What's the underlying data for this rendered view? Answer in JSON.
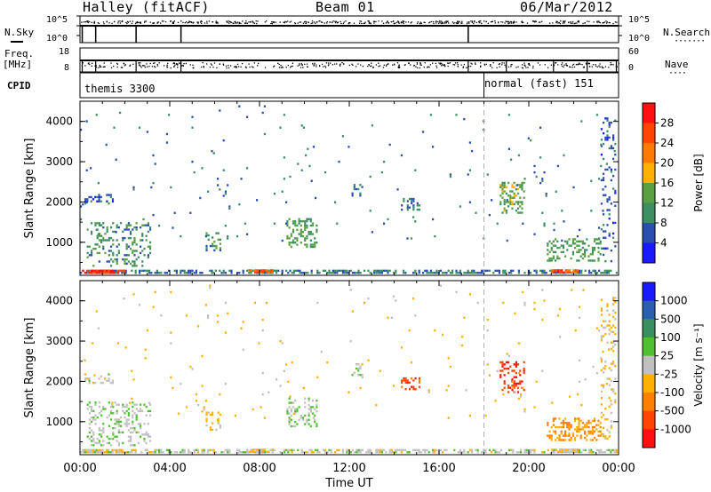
{
  "header": {
    "station": "Halley (fitACF)",
    "beam": "Beam 01",
    "date": "06/Mar/2012"
  },
  "top_panels": {
    "nsky_label": "N.Sky",
    "nsearch_label": "N.Search",
    "nsky_ticks": [
      "10^5",
      "10^0"
    ],
    "nsearch_ticks": [
      "10^5",
      "10^0"
    ],
    "freq_label_1": "Freq.",
    "freq_label_2": "[MHz]",
    "freq_ticks": [
      "18",
      "8"
    ],
    "nave_label": "Nave",
    "nave_ticks": [
      "60",
      "0"
    ],
    "cpid_label": "CPID",
    "cpid_segments": [
      "themis 3300",
      "normal (fast) 151"
    ]
  },
  "colors": {
    "power_scale": [
      "#1a1aff",
      "#2a4fb0",
      "#3b8f60",
      "#5aa040",
      "#ffb000",
      "#ff7a00",
      "#ff4500",
      "#ff1010"
    ],
    "velocity_scale": [
      "#ff1010",
      "#ff4500",
      "#ff8000",
      "#ffb000",
      "#c0c0c0",
      "#50c030",
      "#3a8f60",
      "#2a5fb0",
      "#1a1aff"
    ],
    "dashed_line": "#b0b0b0"
  },
  "chart_data": [
    {
      "type": "heatmap",
      "name": "power",
      "ylabel": "Slant Range [km]",
      "xlabel": "",
      "xlim": [
        "00:00",
        "24:00"
      ],
      "ylim": [
        180,
        4500
      ],
      "y_ticks": [
        "1000",
        "2000",
        "3000",
        "4000"
      ],
      "colorbar": {
        "label": "Power [dB]",
        "ticks": [
          "28",
          "24",
          "20",
          "16",
          "12",
          "8",
          "4"
        ],
        "range": [
          0,
          32
        ]
      },
      "mode_change_time": "18:00",
      "scatter_regions": [
        {
          "t": [
            0.0,
            24.0
          ],
          "r": [
            200,
            320
          ],
          "v": 8,
          "density": 0.55
        },
        {
          "t": [
            0.1,
            2.0
          ],
          "r": [
            200,
            320
          ],
          "v": 28,
          "density": 0.8
        },
        {
          "t": [
            0.3,
            3.2
          ],
          "r": [
            400,
            1500
          ],
          "v": 10,
          "density": 0.25
        },
        {
          "t": [
            0.2,
            1.5
          ],
          "r": [
            1950,
            2200
          ],
          "v": 6,
          "density": 0.35
        },
        {
          "t": [
            5.6,
            6.3
          ],
          "r": [
            750,
            1250
          ],
          "v": 10,
          "density": 0.3
        },
        {
          "t": [
            7.5,
            8.6
          ],
          "r": [
            200,
            330
          ],
          "v": 24,
          "density": 0.8
        },
        {
          "t": [
            9.2,
            10.6
          ],
          "r": [
            850,
            1600
          ],
          "v": 12,
          "density": 0.3
        },
        {
          "t": [
            12.1,
            12.6
          ],
          "r": [
            2150,
            2450
          ],
          "v": 8,
          "density": 0.35
        },
        {
          "t": [
            14.3,
            15.2
          ],
          "r": [
            1800,
            2100
          ],
          "v": 8,
          "density": 0.4
        },
        {
          "t": [
            18.7,
            19.8
          ],
          "r": [
            1700,
            2500
          ],
          "v": 14,
          "density": 0.35
        },
        {
          "t": [
            21.0,
            22.2
          ],
          "r": [
            200,
            330
          ],
          "v": 26,
          "density": 0.85
        },
        {
          "t": [
            20.8,
            23.2
          ],
          "r": [
            500,
            1100
          ],
          "v": 12,
          "density": 0.35
        },
        {
          "t": [
            23.2,
            23.9
          ],
          "r": [
            500,
            4100
          ],
          "v": 6,
          "density": 0.15
        },
        {
          "t": [
            0.0,
            24.0
          ],
          "r": [
            1000,
            4400
          ],
          "v": 8,
          "density": 0.01
        }
      ]
    },
    {
      "type": "heatmap",
      "name": "velocity",
      "ylabel": "Slant Range [km]",
      "xlabel": "Time UT",
      "xlim": [
        "00:00",
        "24:00"
      ],
      "ylim": [
        180,
        4500
      ],
      "y_ticks": [
        "1000",
        "2000",
        "3000",
        "4000"
      ],
      "x_ticks": [
        "00:00",
        "04:00",
        "08:00",
        "12:00",
        "16:00",
        "20:00",
        "00:00"
      ],
      "colorbar": {
        "label": "Velocity [m s⁻¹]",
        "ticks": [
          "1000",
          "500",
          "100",
          "25",
          "-25",
          "-100",
          "-500",
          "-1000"
        ],
        "range": [
          -1200,
          1200
        ]
      },
      "mode_change_time": "18:00",
      "scatter_regions": [
        {
          "t": [
            0.0,
            24.0
          ],
          "r": [
            200,
            320
          ],
          "v": 0,
          "density": 0.55
        },
        {
          "t": [
            0.1,
            2.0
          ],
          "r": [
            200,
            320
          ],
          "v": -50,
          "density": 0.7
        },
        {
          "t": [
            0.3,
            3.2
          ],
          "r": [
            400,
            1500
          ],
          "v": 80,
          "density": 0.25
        },
        {
          "t": [
            0.2,
            1.5
          ],
          "r": [
            1950,
            2200
          ],
          "v": 0,
          "density": 0.35
        },
        {
          "t": [
            5.6,
            6.3
          ],
          "r": [
            750,
            1250
          ],
          "v": -200,
          "density": 0.3
        },
        {
          "t": [
            7.5,
            8.6
          ],
          "r": [
            200,
            330
          ],
          "v": -200,
          "density": 0.7
        },
        {
          "t": [
            9.2,
            10.6
          ],
          "r": [
            850,
            1600
          ],
          "v": 100,
          "density": 0.3
        },
        {
          "t": [
            12.1,
            12.6
          ],
          "r": [
            2150,
            2450
          ],
          "v": 50,
          "density": 0.35
        },
        {
          "t": [
            14.3,
            15.2
          ],
          "r": [
            1800,
            2100
          ],
          "v": -800,
          "density": 0.4
        },
        {
          "t": [
            18.7,
            19.8
          ],
          "r": [
            1700,
            2500
          ],
          "v": -900,
          "density": 0.35
        },
        {
          "t": [
            21.0,
            22.2
          ],
          "r": [
            200,
            330
          ],
          "v": -150,
          "density": 0.85
        },
        {
          "t": [
            20.8,
            23.2
          ],
          "r": [
            500,
            1100
          ],
          "v": -400,
          "density": 0.35
        },
        {
          "t": [
            23.2,
            23.9
          ],
          "r": [
            500,
            4100
          ],
          "v": -200,
          "density": 0.15
        },
        {
          "t": [
            0.0,
            24.0
          ],
          "r": [
            1000,
            4400
          ],
          "v": -200,
          "density": 0.01
        }
      ]
    }
  ]
}
